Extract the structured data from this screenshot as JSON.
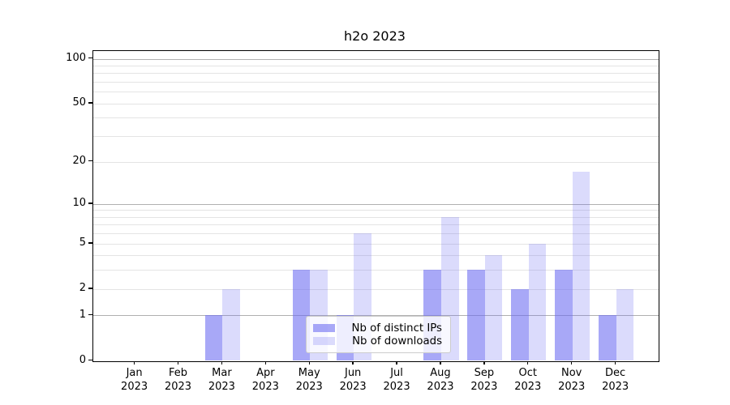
{
  "title": "h2o 2023",
  "legend": {
    "items": [
      {
        "label": "Nb of distinct IPs",
        "series_key": "distinct_ips"
      },
      {
        "label": "Nb of downloads",
        "series_key": "downloads"
      }
    ]
  },
  "colors": {
    "bar_base": "#6969f2",
    "distinct_ips_alpha": 0.58,
    "downloads_alpha": 0.24,
    "grid_major": "#b0b0b0",
    "grid_minor": "#e4e4e4",
    "spine": "#000000",
    "legend_border": "#cccccc"
  },
  "chart_data": {
    "type": "bar",
    "title": "h2o 2023",
    "categories": [
      "Jan",
      "Feb",
      "Mar",
      "Apr",
      "May",
      "Jun",
      "Jul",
      "Aug",
      "Sep",
      "Oct",
      "Nov",
      "Dec"
    ],
    "year_label": "2023",
    "series": [
      {
        "name": "Nb of distinct IPs",
        "key": "distinct_ips",
        "values": [
          0,
          0,
          1,
          0,
          3,
          1,
          0,
          3,
          3,
          2,
          3,
          1
        ]
      },
      {
        "name": "Nb of downloads",
        "key": "downloads",
        "values": [
          0,
          0,
          2,
          0,
          3,
          6,
          0,
          8,
          4,
          5,
          17,
          2
        ]
      }
    ],
    "xlabel": "",
    "ylabel": "",
    "yscale": "log1p",
    "ylim": [
      0,
      113
    ],
    "yticks": [
      0,
      1,
      2,
      5,
      10,
      20,
      50,
      100
    ],
    "gridlines_major": [
      1,
      10,
      100
    ],
    "gridlines_minor": [
      2,
      3,
      4,
      5,
      6,
      7,
      8,
      9,
      20,
      30,
      40,
      50,
      60,
      70,
      80,
      90
    ],
    "grid": "on",
    "legend_position": "lower center"
  }
}
